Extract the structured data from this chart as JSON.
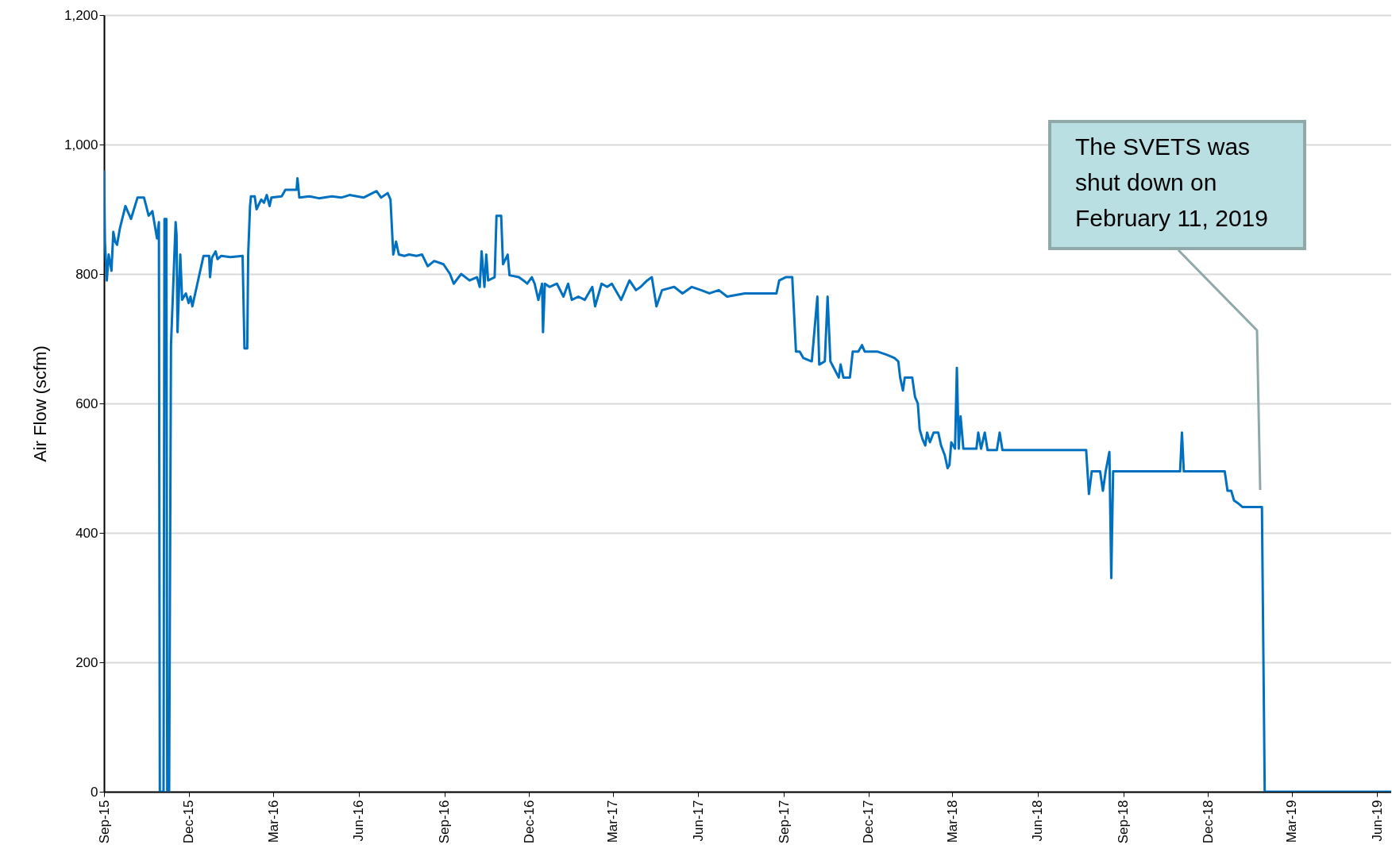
{
  "chart_data": {
    "type": "line",
    "ylabel": "Air Flow (scfm)",
    "x": [
      "2015-09-01",
      "2015-09-02",
      "2015-09-04",
      "2015-09-06",
      "2015-09-09",
      "2015-09-11",
      "2015-09-13",
      "2015-09-15",
      "2015-09-18",
      "2015-09-24",
      "2015-09-30",
      "2015-10-07",
      "2015-10-14",
      "2015-10-19",
      "2015-10-23",
      "2015-10-28",
      "2015-10-30",
      "2015-10-31",
      "2015-11-04",
      "2015-11-05",
      "2015-11-07",
      "2015-11-08",
      "2015-11-10",
      "2015-11-12",
      "2015-11-17",
      "2015-11-18",
      "2015-11-19",
      "2015-11-22",
      "2015-11-24",
      "2015-11-28",
      "2015-12-01",
      "2015-12-03",
      "2015-12-05",
      "2015-12-17",
      "2015-12-23",
      "2015-12-24",
      "2015-12-26",
      "2015-12-30",
      "2016-01-01",
      "2016-01-05",
      "2016-01-15",
      "2016-01-28",
      "2016-01-30",
      "2016-02-02",
      "2016-02-03",
      "2016-02-05",
      "2016-02-06",
      "2016-02-10",
      "2016-02-12",
      "2016-02-17",
      "2016-02-20",
      "2016-02-23",
      "2016-02-26",
      "2016-02-28",
      "2016-03-10",
      "2016-03-14",
      "2016-03-26",
      "2016-03-27",
      "2016-03-29",
      "2016-04-09",
      "2016-04-19",
      "2016-05-03",
      "2016-05-13",
      "2016-05-22",
      "2016-06-06",
      "2016-06-20",
      "2016-06-25",
      "2016-07-02",
      "2016-07-05",
      "2016-07-08",
      "2016-07-11",
      "2016-07-14",
      "2016-07-20",
      "2016-07-25",
      "2016-08-02",
      "2016-08-08",
      "2016-08-14",
      "2016-08-21",
      "2016-08-31",
      "2016-09-07",
      "2016-09-11",
      "2016-09-19",
      "2016-09-28",
      "2016-10-06",
      "2016-10-09",
      "2016-10-11",
      "2016-10-14",
      "2016-10-16",
      "2016-10-18",
      "2016-10-25",
      "2016-10-27",
      "2016-11-01",
      "2016-11-03",
      "2016-11-08",
      "2016-11-10",
      "2016-11-20",
      "2016-11-25",
      "2016-11-29",
      "2016-12-04",
      "2016-12-07",
      "2016-12-11",
      "2016-12-15",
      "2016-12-16",
      "2016-12-18",
      "2016-12-23",
      "2016-12-31",
      "2017-01-07",
      "2017-01-12",
      "2017-01-16",
      "2017-01-23",
      "2017-01-30",
      "2017-02-07",
      "2017-02-10",
      "2017-02-17",
      "2017-02-23",
      "2017-02-28",
      "2017-03-10",
      "2017-03-19",
      "2017-03-26",
      "2017-03-31",
      "2017-04-07",
      "2017-04-12",
      "2017-04-17",
      "2017-04-23",
      "2017-05-06",
      "2017-05-15",
      "2017-05-25",
      "2017-06-04",
      "2017-06-13",
      "2017-06-23",
      "2017-07-02",
      "2017-07-21",
      "2017-08-09",
      "2017-08-24",
      "2017-08-27",
      "2017-09-03",
      "2017-09-10",
      "2017-09-14",
      "2017-09-18",
      "2017-09-22",
      "2017-10-01",
      "2017-10-07",
      "2017-10-09",
      "2017-10-15",
      "2017-10-18",
      "2017-10-21",
      "2017-10-30",
      "2017-11-01",
      "2017-11-04",
      "2017-11-11",
      "2017-11-14",
      "2017-11-20",
      "2017-11-24",
      "2017-11-27",
      "2017-12-11",
      "2017-12-21",
      "2017-12-29",
      "2018-01-02",
      "2018-01-04",
      "2018-01-07",
      "2018-01-09",
      "2018-01-17",
      "2018-01-20",
      "2018-01-23",
      "2018-01-25",
      "2018-01-28",
      "2018-01-31",
      "2018-02-02",
      "2018-02-05",
      "2018-02-09",
      "2018-02-14",
      "2018-02-17",
      "2018-02-21",
      "2018-02-24",
      "2018-02-26",
      "2018-02-28",
      "2018-03-04",
      "2018-03-06",
      "2018-03-08",
      "2018-03-10",
      "2018-03-13",
      "2018-03-27",
      "2018-03-29",
      "2018-04-01",
      "2018-04-05",
      "2018-04-08",
      "2018-04-18",
      "2018-04-21",
      "2018-04-24",
      "2018-07-23",
      "2018-07-26",
      "2018-07-29",
      "2018-08-07",
      "2018-08-10",
      "2018-08-13",
      "2018-08-17",
      "2018-08-19",
      "2018-08-21",
      "2018-11-01",
      "2018-11-03",
      "2018-11-05",
      "2018-12-19",
      "2018-12-22",
      "2018-12-26",
      "2018-12-29",
      "2019-01-03",
      "2019-01-07",
      "2019-01-28",
      "2019-01-31",
      "2019-06-16"
    ],
    "series": [
      {
        "color": "#0070c0",
        "values": [
          960,
          850,
          790,
          830,
          805,
          865,
          850,
          845,
          870,
          905,
          885,
          918,
          918,
          890,
          897,
          855,
          880,
          0,
          0,
          885,
          885,
          0,
          0,
          690,
          880,
          860,
          710,
          830,
          760,
          770,
          755,
          765,
          750,
          828,
          828,
          795,
          825,
          835,
          823,
          828,
          826,
          828,
          685,
          685,
          830,
          905,
          920,
          920,
          900,
          915,
          910,
          922,
          905,
          918,
          920,
          930,
          930,
          948,
          918,
          920,
          917,
          920,
          918,
          922,
          918,
          928,
          918,
          925,
          915,
          830,
          850,
          830,
          828,
          830,
          828,
          830,
          812,
          820,
          815,
          800,
          785,
          800,
          790,
          795,
          780,
          835,
          780,
          830,
          790,
          795,
          890,
          890,
          815,
          830,
          798,
          795,
          790,
          785,
          795,
          785,
          760,
          785,
          710,
          785,
          780,
          785,
          765,
          785,
          760,
          765,
          760,
          780,
          750,
          785,
          780,
          785,
          760,
          790,
          775,
          780,
          790,
          795,
          750,
          775,
          780,
          770,
          780,
          775,
          770,
          775,
          765,
          770,
          770,
          770,
          790,
          795,
          795,
          680,
          680,
          670,
          665,
          765,
          660,
          665,
          765,
          665,
          640,
          660,
          640,
          640,
          680,
          680,
          690,
          680,
          680,
          675,
          670,
          665,
          640,
          620,
          640,
          640,
          610,
          600,
          560,
          545,
          535,
          555,
          540,
          555,
          555,
          535,
          520,
          500,
          505,
          540,
          530,
          655,
          530,
          580,
          530,
          530,
          555,
          530,
          555,
          528,
          528,
          555,
          528,
          528,
          460,
          495,
          495,
          465,
          495,
          525,
          330,
          495,
          495,
          555,
          495,
          495,
          465,
          465,
          450,
          445,
          440,
          440,
          0,
          0
        ]
      }
    ],
    "xlim": [
      "2015-09-01",
      "2019-06-16"
    ],
    "xticks": [
      {
        "value": "2015-09-01",
        "label": "Sep-15"
      },
      {
        "value": "2015-12-01",
        "label": "Dec-15"
      },
      {
        "value": "2016-03-01",
        "label": "Mar-16"
      },
      {
        "value": "2016-06-01",
        "label": "Jun-16"
      },
      {
        "value": "2016-09-01",
        "label": "Sep-16"
      },
      {
        "value": "2016-12-01",
        "label": "Dec-16"
      },
      {
        "value": "2017-03-01",
        "label": "Mar-17"
      },
      {
        "value": "2017-06-01",
        "label": "Jun-17"
      },
      {
        "value": "2017-09-01",
        "label": "Sep-17"
      },
      {
        "value": "2017-12-01",
        "label": "Dec-17"
      },
      {
        "value": "2018-03-01",
        "label": "Mar-18"
      },
      {
        "value": "2018-06-01",
        "label": "Jun-18"
      },
      {
        "value": "2018-09-01",
        "label": "Sep-18"
      },
      {
        "value": "2018-12-01",
        "label": "Dec-18"
      },
      {
        "value": "2019-03-01",
        "label": "Mar-19"
      },
      {
        "value": "2019-06-01",
        "label": "Jun-19"
      }
    ],
    "ylim": [
      0,
      1200
    ],
    "yticks": [
      0,
      200,
      400,
      600,
      800,
      {
        "value": 1000,
        "label": "1,000"
      },
      {
        "value": 1200,
        "label": "1,200"
      }
    ],
    "grid": "y",
    "marker": "none",
    "line_style": "solid",
    "annotations": [
      "The SVETS was\nshut down on\nFebruary 11, 2019"
    ]
  }
}
